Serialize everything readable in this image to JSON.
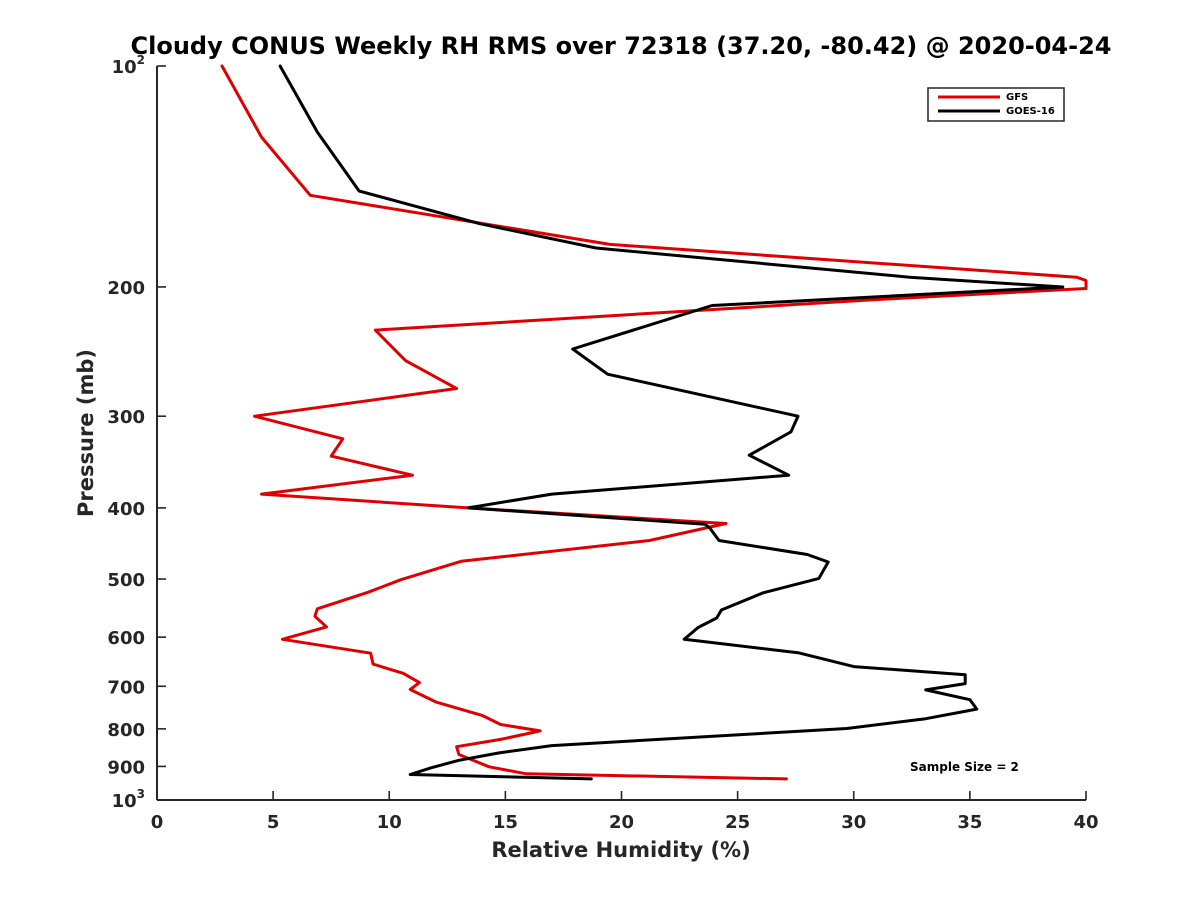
{
  "chart_data": {
    "type": "line",
    "title": "Cloudy CONUS Weekly RH RMS over 72318 (37.20, -80.42) @ 2020-04-24",
    "xlabel": "Relative Humidity (%)",
    "ylabel": "Pressure (mb)",
    "xlim": [
      0,
      40
    ],
    "ylim": [
      100,
      1000
    ],
    "yscale": "log",
    "yreversed": true,
    "xticks": [
      0,
      5,
      10,
      15,
      20,
      25,
      30,
      35,
      40
    ],
    "xtick_labels": [
      "0",
      "5",
      "10",
      "15",
      "20",
      "25",
      "30",
      "35",
      "40"
    ],
    "yticks": [
      {
        "value": 100,
        "label": "10",
        "sup": "2"
      },
      {
        "value": 200,
        "label": "200"
      },
      {
        "value": 300,
        "label": "300"
      },
      {
        "value": 400,
        "label": "400"
      },
      {
        "value": 500,
        "label": "500"
      },
      {
        "value": 600,
        "label": "600"
      },
      {
        "value": 700,
        "label": "700"
      },
      {
        "value": 800,
        "label": "800"
      },
      {
        "value": 900,
        "label": "900"
      },
      {
        "value": 1000,
        "label": "10",
        "sup": "3"
      }
    ],
    "legend_position": "top-right",
    "annotation": "Sample Size = 2",
    "series": [
      {
        "name": "GFS",
        "color": "#e00000",
        "points": [
          [
            2.8,
            100
          ],
          [
            4.5,
            125
          ],
          [
            6.6,
            150
          ],
          [
            19.5,
            175
          ],
          [
            39.6,
            194
          ],
          [
            40.0,
            196
          ],
          [
            40.0,
            201
          ],
          [
            31.0,
            208
          ],
          [
            9.4,
            229
          ],
          [
            10.7,
            252
          ],
          [
            12.9,
            275
          ],
          [
            4.2,
            300
          ],
          [
            8.0,
            322
          ],
          [
            7.5,
            340
          ],
          [
            11.0,
            361
          ],
          [
            4.5,
            383
          ],
          [
            13.4,
            400
          ],
          [
            24.5,
            420
          ],
          [
            21.2,
            443
          ],
          [
            13.1,
            473
          ],
          [
            10.5,
            501
          ],
          [
            9.1,
            521
          ],
          [
            6.9,
            549
          ],
          [
            6.8,
            562
          ],
          [
            7.3,
            581
          ],
          [
            5.4,
            604
          ],
          [
            9.2,
            631
          ],
          [
            9.3,
            653
          ],
          [
            10.6,
            672
          ],
          [
            11.3,
            692
          ],
          [
            10.9,
            707
          ],
          [
            12.0,
            735
          ],
          [
            14.0,
            767
          ],
          [
            14.8,
            789
          ],
          [
            16.5,
            805
          ],
          [
            14.8,
            827
          ],
          [
            12.9,
            846
          ],
          [
            13.0,
            867
          ],
          [
            14.3,
            901
          ],
          [
            15.9,
            921
          ],
          [
            27.1,
            936
          ]
        ]
      },
      {
        "name": "GOES-16",
        "color": "#000000",
        "points": [
          [
            5.3,
            100
          ],
          [
            6.9,
            123
          ],
          [
            8.7,
            148
          ],
          [
            13.9,
            164
          ],
          [
            18.9,
            177
          ],
          [
            32.4,
            194
          ],
          [
            39.0,
            200
          ],
          [
            23.9,
            212
          ],
          [
            17.9,
            243
          ],
          [
            19.4,
            263
          ],
          [
            27.6,
            300
          ],
          [
            27.3,
            315
          ],
          [
            25.5,
            339
          ],
          [
            27.2,
            361
          ],
          [
            17.0,
            383
          ],
          [
            13.4,
            400
          ],
          [
            23.6,
            421
          ],
          [
            23.8,
            426
          ],
          [
            24.2,
            443
          ],
          [
            28.0,
            463
          ],
          [
            28.9,
            474
          ],
          [
            28.5,
            499
          ],
          [
            26.1,
            522
          ],
          [
            24.3,
            551
          ],
          [
            24.1,
            565
          ],
          [
            23.3,
            582
          ],
          [
            22.7,
            604
          ],
          [
            27.6,
            630
          ],
          [
            30.0,
            658
          ],
          [
            34.8,
            675
          ],
          [
            34.8,
            694
          ],
          [
            33.1,
            708
          ],
          [
            35.0,
            730
          ],
          [
            35.3,
            752
          ],
          [
            33.1,
            775
          ],
          [
            29.7,
            799
          ],
          [
            17.0,
            843
          ],
          [
            14.7,
            863
          ],
          [
            13.0,
            883
          ],
          [
            11.8,
            904
          ],
          [
            10.9,
            923
          ],
          [
            18.7,
            936
          ]
        ]
      }
    ]
  }
}
